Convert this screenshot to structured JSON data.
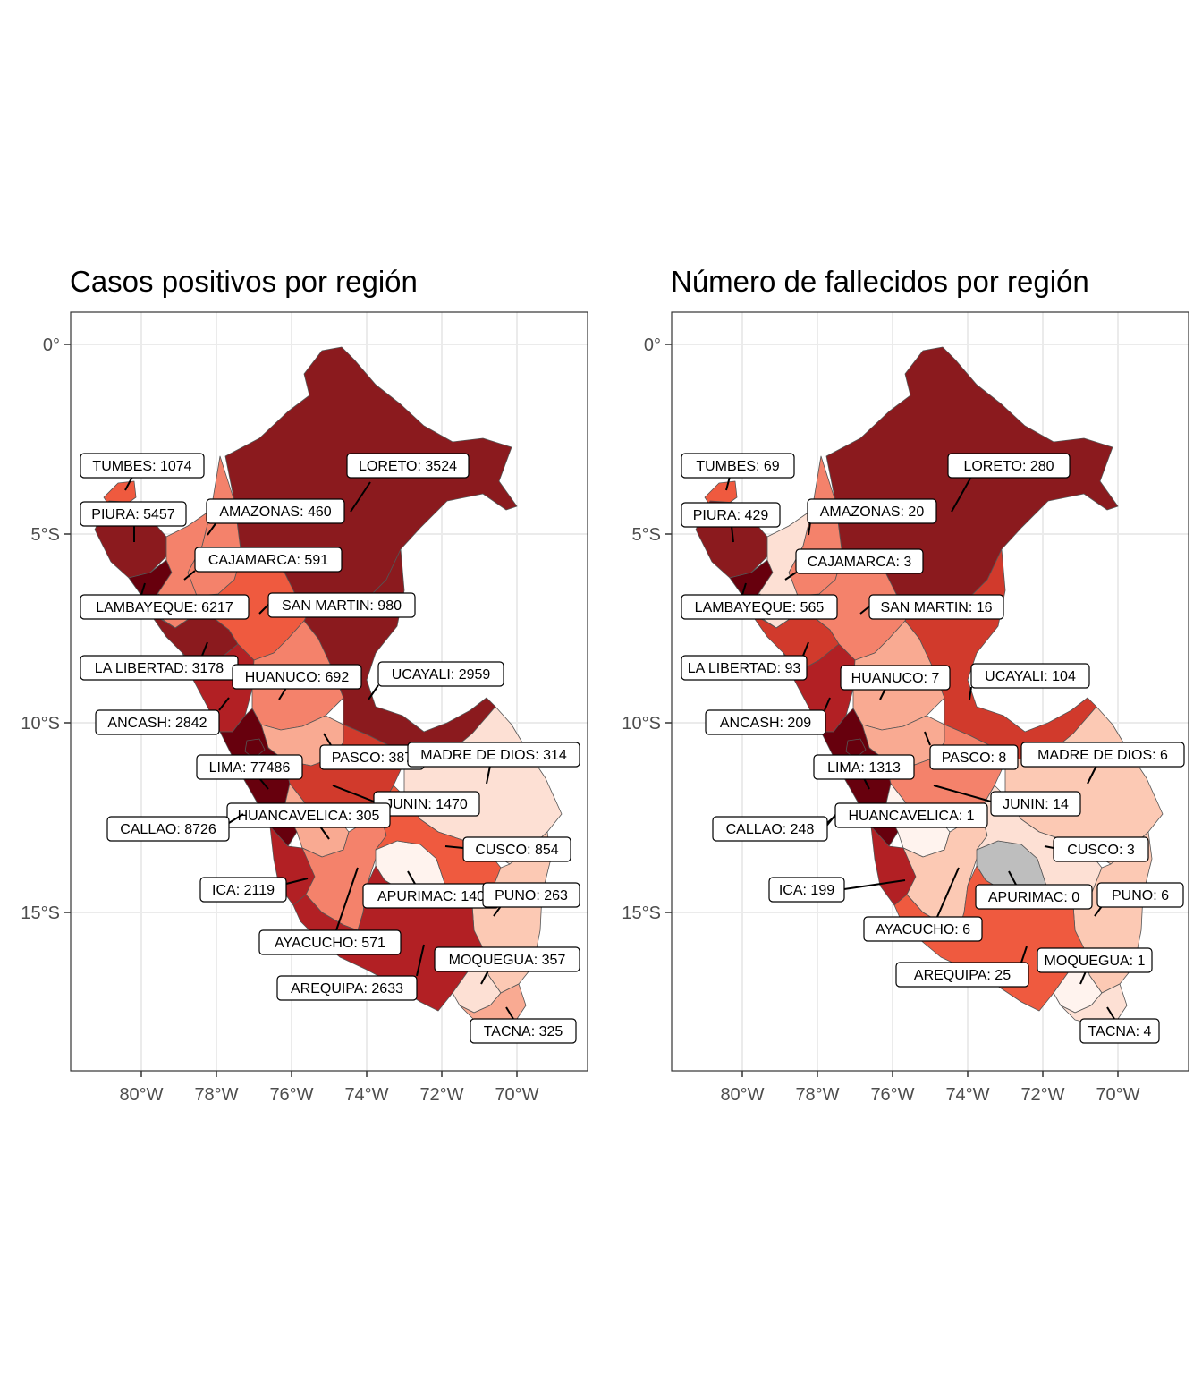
{
  "panels": [
    {
      "title": "Casos positivos por región",
      "labels": [
        {
          "region": "TUMBES",
          "value": 1074,
          "text": "TUMBES: 1074"
        },
        {
          "region": "LORETO",
          "value": 3524,
          "text": "LORETO: 3524"
        },
        {
          "region": "PIURA",
          "value": 5457,
          "text": "PIURA: 5457"
        },
        {
          "region": "AMAZONAS",
          "value": 460,
          "text": "AMAZONAS: 460"
        },
        {
          "region": "CAJAMARCA",
          "value": 591,
          "text": "CAJAMARCA: 591"
        },
        {
          "region": "LAMBAYEQUE",
          "value": 6217,
          "text": "LAMBAYEQUE: 6217"
        },
        {
          "region": "SAN MARTIN",
          "value": 980,
          "text": "SAN MARTIN: 980"
        },
        {
          "region": "LA LIBERTAD",
          "value": 3178,
          "text": "LA LIBERTAD: 3178"
        },
        {
          "region": "HUANUCO",
          "value": 692,
          "text": "HUANUCO: 692"
        },
        {
          "region": "UCAYALI",
          "value": 2959,
          "text": "UCAYALI: 2959"
        },
        {
          "region": "ANCASH",
          "value": 2842,
          "text": "ANCASH: 2842"
        },
        {
          "region": "PASCO",
          "value": 387,
          "text": "PASCO: 387"
        },
        {
          "region": "MADRE DE DIOS",
          "value": 314,
          "text": "MADRE DE DIOS: 314"
        },
        {
          "region": "LIMA",
          "value": 77486,
          "text": "LIMA: 77486"
        },
        {
          "region": "JUNIN",
          "value": 1470,
          "text": "JUNIN: 1470"
        },
        {
          "region": "HUANCAVELICA",
          "value": 305,
          "text": "HUANCAVELICA: 305"
        },
        {
          "region": "CALLAO",
          "value": 8726,
          "text": "CALLAO: 8726"
        },
        {
          "region": "CUSCO",
          "value": 854,
          "text": "CUSCO: 854"
        },
        {
          "region": "ICA",
          "value": 2119,
          "text": "ICA: 2119"
        },
        {
          "region": "APURIMAC",
          "value": 140,
          "text": "APURIMAC: 140"
        },
        {
          "region": "PUNO",
          "value": 263,
          "text": "PUNO: 263"
        },
        {
          "region": "AYACUCHO",
          "value": 571,
          "text": "AYACUCHO: 571"
        },
        {
          "region": "MOQUEGUA",
          "value": 357,
          "text": "MOQUEGUA: 357"
        },
        {
          "region": "AREQUIPA",
          "value": 2633,
          "text": "AREQUIPA: 2633"
        },
        {
          "region": "TACNA",
          "value": 325,
          "text": "TACNA: 325"
        }
      ]
    },
    {
      "title": "Número de fallecidos por región",
      "labels": [
        {
          "region": "TUMBES",
          "value": 69,
          "text": "TUMBES: 69"
        },
        {
          "region": "LORETO",
          "value": 280,
          "text": "LORETO: 280"
        },
        {
          "region": "PIURA",
          "value": 429,
          "text": "PIURA: 429"
        },
        {
          "region": "AMAZONAS",
          "value": 20,
          "text": "AMAZONAS: 20"
        },
        {
          "region": "CAJAMARCA",
          "value": 3,
          "text": "CAJAMARCA: 3"
        },
        {
          "region": "LAMBAYEQUE",
          "value": 565,
          "text": "LAMBAYEQUE: 565"
        },
        {
          "region": "SAN MARTIN",
          "value": 16,
          "text": "SAN MARTIN: 16"
        },
        {
          "region": "LA LIBERTAD",
          "value": 93,
          "text": "LA LIBERTAD: 93"
        },
        {
          "region": "HUANUCO",
          "value": 7,
          "text": "HUANUCO: 7"
        },
        {
          "region": "UCAYALI",
          "value": 104,
          "text": "UCAYALI: 104"
        },
        {
          "region": "ANCASH",
          "value": 209,
          "text": "ANCASH: 209"
        },
        {
          "region": "PASCO",
          "value": 8,
          "text": "PASCO: 8"
        },
        {
          "region": "MADRE DE DIOS",
          "value": 6,
          "text": "MADRE DE DIOS: 6"
        },
        {
          "region": "LIMA",
          "value": 1313,
          "text": "LIMA: 1313"
        },
        {
          "region": "JUNIN",
          "value": 14,
          "text": "JUNIN: 14"
        },
        {
          "region": "HUANCAVELICA",
          "value": 1,
          "text": "HUANCAVELICA: 1"
        },
        {
          "region": "CALLAO",
          "value": 248,
          "text": "CALLAO: 248"
        },
        {
          "region": "CUSCO",
          "value": 3,
          "text": "CUSCO: 3"
        },
        {
          "region": "ICA",
          "value": 199,
          "text": "ICA: 199"
        },
        {
          "region": "APURIMAC",
          "value": 0,
          "text": "APURIMAC: 0"
        },
        {
          "region": "PUNO",
          "value": 6,
          "text": "PUNO: 6"
        },
        {
          "region": "AYACUCHO",
          "value": 6,
          "text": "AYACUCHO: 6"
        },
        {
          "region": "MOQUEGUA",
          "value": 1,
          "text": "MOQUEGUA: 1"
        },
        {
          "region": "AREQUIPA",
          "value": 25,
          "text": "AREQUIPA: 25"
        },
        {
          "region": "TACNA",
          "value": 4,
          "text": "TACNA: 4"
        }
      ]
    }
  ],
  "axes": {
    "lat_ticks": [
      "0°",
      "5°S",
      "10°S",
      "15°S"
    ],
    "lon_ticks": [
      "80°W",
      "78°W",
      "76°W",
      "74°W",
      "72°W",
      "70°W"
    ]
  },
  "colors": {
    "darkest": "#67000d",
    "dark": "#8b1a1e",
    "mid_dark": "#b22024",
    "mid": "#d13a2c",
    "red": "#ef5a3f",
    "salmon": "#f4826b",
    "light_salmon": "#f9aa92",
    "pale": "#fcc9b4",
    "very_pale": "#fde0d4",
    "lightest": "#fff3ee",
    "missing": "#bebebe",
    "grid": "#ebebeb",
    "border": "#333333"
  }
}
